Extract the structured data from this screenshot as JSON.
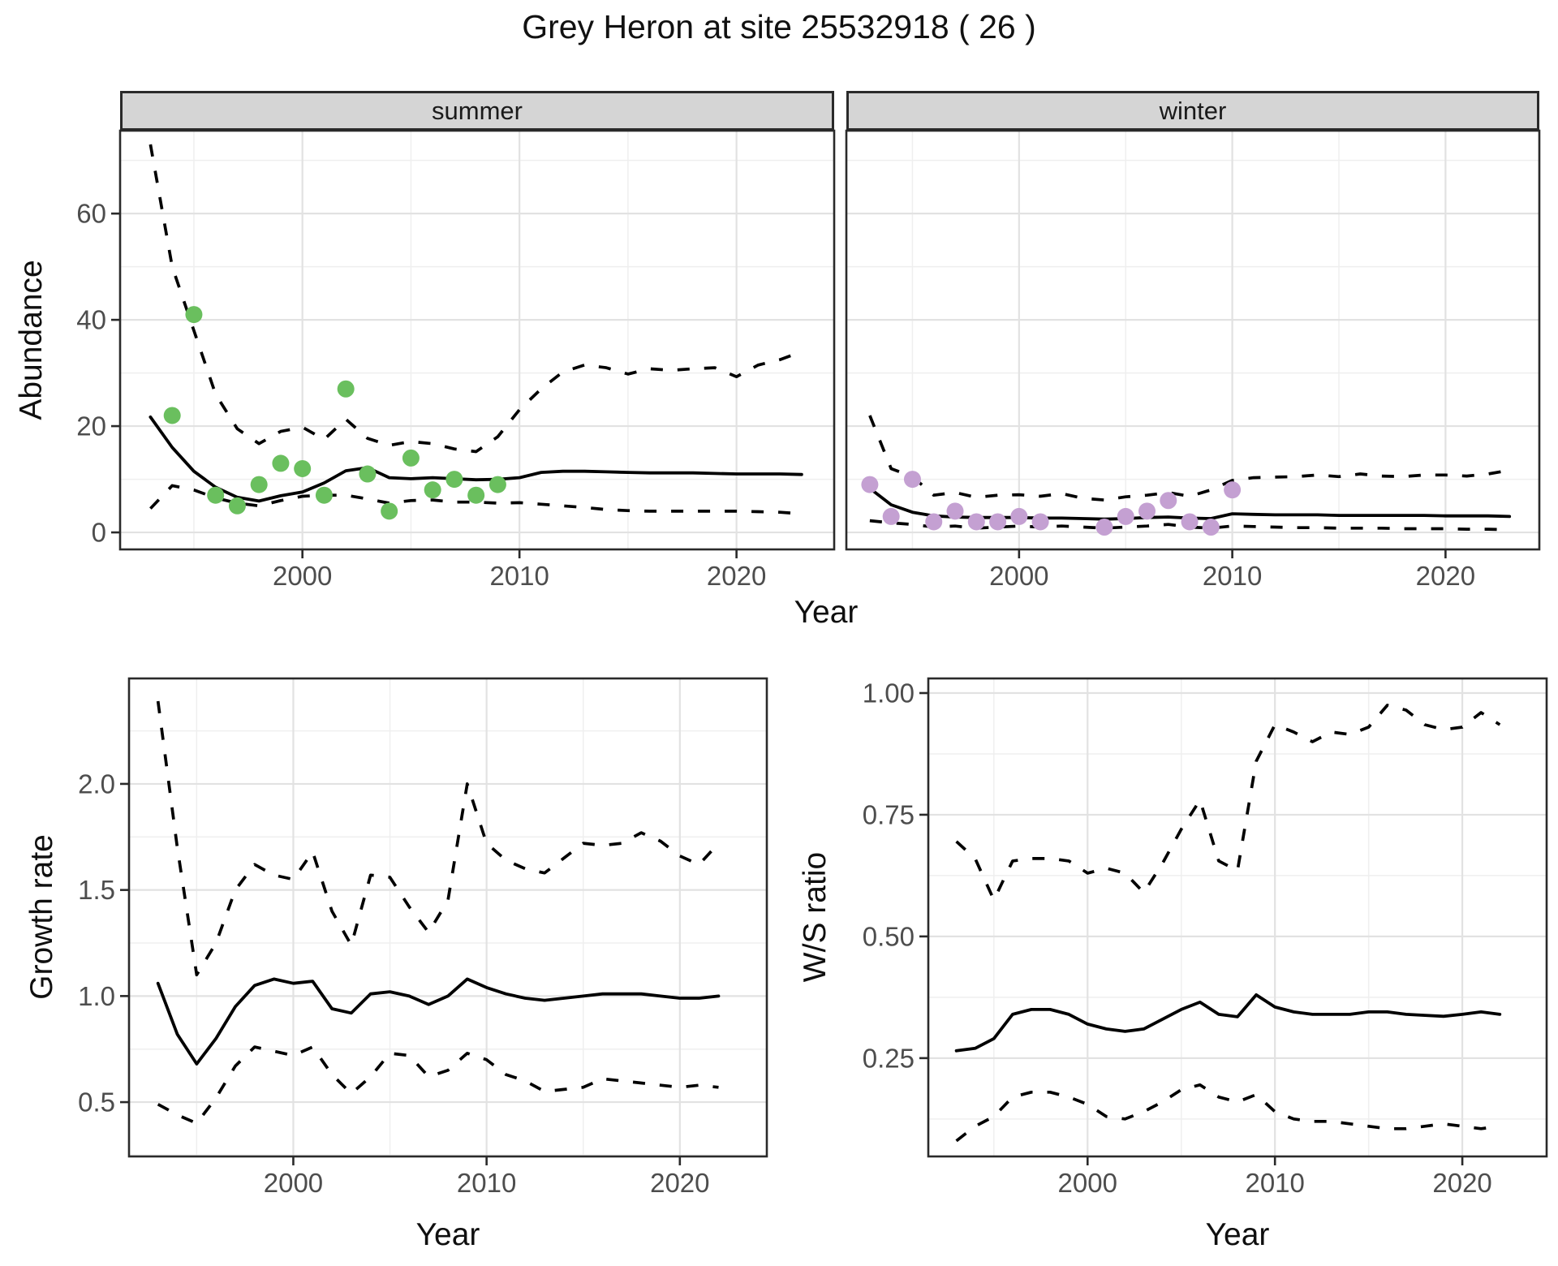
{
  "title": "Grey Heron at site 25532918 ( 26 )",
  "colors": {
    "summer_point": "#6ABF5E",
    "winter_point": "#C4A0D2",
    "fit_line": "#000000",
    "ci_line": "#000000",
    "grid_major": "#E2E2E2",
    "grid_minor": "#EFEFEF",
    "panel_border": "#2A2A2A",
    "strip_bg": "#D5D5D5",
    "tick_label": "#4D4D4D"
  },
  "chart_data": [
    {
      "type": "line",
      "id": "abundance",
      "ylabel": "Abundance",
      "xlabel": "Year",
      "ylim": [
        -3.2,
        75.6
      ],
      "yticks": [
        0,
        20,
        40,
        60
      ],
      "ytick_labels": [
        "0",
        "20",
        "40",
        "60"
      ],
      "yminor": [
        10,
        30,
        50,
        70
      ],
      "xticks": [
        2000,
        2010,
        2020
      ],
      "xtick_labels": [
        "2000",
        "2010",
        "2020"
      ],
      "xminor": [
        1995,
        2005,
        2015
      ],
      "years": [
        1993,
        1994,
        1995,
        1996,
        1997,
        1998,
        1999,
        2000,
        2001,
        2002,
        2003,
        2004,
        2005,
        2006,
        2007,
        2008,
        2009,
        2010,
        2011,
        2012,
        2013,
        2014,
        2015,
        2016,
        2017,
        2018,
        2019,
        2020,
        2021,
        2022,
        2023
      ],
      "facets": [
        {
          "label": "summer",
          "xlim": [
            1991.6,
            2024.5
          ],
          "fit": [
            21.7,
            16,
            11.5,
            8.5,
            6.6,
            5.9,
            6.9,
            7.6,
            9.3,
            11.6,
            12.2,
            10.3,
            10.1,
            10.3,
            10.1,
            9.9,
            10.0,
            10.3,
            11.3,
            11.5,
            11.5,
            11.4,
            11.3,
            11.2,
            11.2,
            11.2,
            11.1,
            11.0,
            11.0,
            11.0,
            10.9
          ],
          "upper": [
            73,
            50,
            38,
            26,
            19.5,
            16.7,
            19,
            19.8,
            17.5,
            21.3,
            17.7,
            16.4,
            17.1,
            16.7,
            15.7,
            15.2,
            18,
            23.1,
            27,
            30.2,
            31.5,
            31,
            29.8,
            30.8,
            30.5,
            30.8,
            31,
            29.3,
            31.5,
            32.5,
            34
          ],
          "lower": [
            4.5,
            8.8,
            8,
            6.5,
            5.5,
            5,
            6,
            6.8,
            7,
            7,
            6.3,
            5.5,
            6,
            6.1,
            5.7,
            5.7,
            5.5,
            5.6,
            5.3,
            5,
            4.7,
            4.3,
            4.1,
            4,
            4,
            4,
            4,
            4,
            3.9,
            3.8,
            3.5
          ],
          "points_x": [
            1994,
            1995,
            1996,
            1997,
            1998,
            1999,
            2000,
            2001,
            2002,
            2003,
            2004,
            2005,
            2006,
            2007,
            2008,
            2009
          ],
          "points_y": [
            22,
            41,
            7,
            5,
            9,
            13,
            12,
            7,
            27,
            11,
            4,
            14,
            8,
            10,
            7,
            9
          ]
        },
        {
          "label": "winter",
          "xlim": [
            1991.9,
            2024.4
          ],
          "fit": [
            8.3,
            5.2,
            3.8,
            3.1,
            2.9,
            2.8,
            2.8,
            2.8,
            2.7,
            2.7,
            2.6,
            2.5,
            2.6,
            2.8,
            2.9,
            2.7,
            2.6,
            3.5,
            3.4,
            3.3,
            3.3,
            3.3,
            3.2,
            3.2,
            3.2,
            3.2,
            3.2,
            3.1,
            3.1,
            3.1,
            3.0
          ],
          "upper": [
            22,
            12,
            10.5,
            7,
            7.5,
            6.6,
            7,
            7.1,
            6.8,
            7.3,
            6.4,
            6.1,
            6.7,
            7,
            7.5,
            6.8,
            8,
            9.8,
            10.3,
            10.4,
            10.5,
            10.8,
            10.5,
            11,
            10.6,
            10.5,
            10.8,
            10.8,
            10.6,
            11,
            11.7
          ],
          "lower": [
            2.2,
            1.8,
            1.5,
            1,
            1.2,
            0.8,
            1,
            1.2,
            1,
            1.2,
            1,
            0.8,
            1,
            1.2,
            1.5,
            1,
            0.8,
            1.2,
            1.1,
            1,
            0.9,
            0.9,
            0.8,
            0.8,
            0.8,
            0.7,
            0.7,
            0.7,
            0.6,
            0.6,
            0.5
          ],
          "points_x": [
            1993,
            1994,
            1995,
            1996,
            1997,
            1998,
            1999,
            2000,
            2001,
            2004,
            2005,
            2006,
            2007,
            2008,
            2009,
            2010
          ],
          "points_y": [
            9,
            3,
            10,
            2,
            4,
            2,
            2,
            3,
            2,
            1,
            3,
            4,
            6,
            2,
            1,
            8
          ]
        }
      ]
    },
    {
      "type": "line",
      "id": "growth_rate",
      "ylabel": "Growth rate",
      "xlabel": "Year",
      "xlim": [
        1991.5,
        2024.5
      ],
      "ylim": [
        0.244,
        2.497
      ],
      "yticks": [
        0.5,
        1.0,
        1.5,
        2.0
      ],
      "ytick_labels": [
        "0.5",
        "1.0",
        "1.5",
        "2.0"
      ],
      "yminor": [
        0.25,
        0.75,
        1.25,
        1.75,
        2.25
      ],
      "xticks": [
        2000,
        2010,
        2020
      ],
      "xtick_labels": [
        "2000",
        "2010",
        "2020"
      ],
      "xminor": [
        1995,
        2005,
        2015
      ],
      "years": [
        1993,
        1994,
        1995,
        1996,
        1997,
        1998,
        1999,
        2000,
        2001,
        2002,
        2003,
        2004,
        2005,
        2006,
        2007,
        2008,
        2009,
        2010,
        2011,
        2012,
        2013,
        2014,
        2015,
        2016,
        2017,
        2018,
        2019,
        2020,
        2021,
        2022
      ],
      "fit": [
        1.06,
        0.82,
        0.68,
        0.8,
        0.95,
        1.05,
        1.08,
        1.06,
        1.07,
        0.94,
        0.92,
        1.01,
        1.02,
        1.0,
        0.96,
        1.0,
        1.08,
        1.04,
        1.01,
        0.99,
        0.98,
        0.99,
        1.0,
        1.01,
        1.01,
        1.01,
        1.0,
        0.99,
        0.99,
        1.0
      ],
      "upper": [
        2.39,
        1.7,
        1.1,
        1.25,
        1.5,
        1.62,
        1.57,
        1.55,
        1.68,
        1.4,
        1.24,
        1.57,
        1.56,
        1.42,
        1.3,
        1.45,
        2.0,
        1.72,
        1.64,
        1.6,
        1.58,
        1.65,
        1.72,
        1.71,
        1.72,
        1.77,
        1.73,
        1.66,
        1.62,
        1.72
      ],
      "lower": [
        0.49,
        0.44,
        0.4,
        0.52,
        0.67,
        0.76,
        0.74,
        0.72,
        0.76,
        0.63,
        0.54,
        0.62,
        0.73,
        0.72,
        0.62,
        0.65,
        0.73,
        0.7,
        0.63,
        0.6,
        0.55,
        0.56,
        0.57,
        0.61,
        0.6,
        0.59,
        0.58,
        0.57,
        0.58,
        0.57
      ]
    },
    {
      "type": "line",
      "id": "ws_ratio",
      "ylabel": "W/S ratio",
      "xlabel": "Year",
      "xlim": [
        1991.5,
        2024.5
      ],
      "ylim": [
        0.048,
        1.03
      ],
      "yticks": [
        0.25,
        0.5,
        0.75,
        1.0
      ],
      "ytick_labels": [
        "0.25",
        "0.50",
        "0.75",
        "1.00"
      ],
      "yminor": [
        0.125,
        0.375,
        0.625,
        0.875
      ],
      "xticks": [
        2000,
        2010,
        2020
      ],
      "xtick_labels": [
        "2000",
        "2010",
        "2020"
      ],
      "xminor": [
        1995,
        2005,
        2015
      ],
      "years": [
        1993,
        1994,
        1995,
        1996,
        1997,
        1998,
        1999,
        2000,
        2001,
        2002,
        2003,
        2004,
        2005,
        2006,
        2007,
        2008,
        2009,
        2010,
        2011,
        2012,
        2013,
        2014,
        2015,
        2016,
        2017,
        2018,
        2019,
        2020,
        2021,
        2022
      ],
      "fit": [
        0.265,
        0.27,
        0.29,
        0.34,
        0.35,
        0.35,
        0.34,
        0.32,
        0.31,
        0.305,
        0.31,
        0.33,
        0.35,
        0.365,
        0.34,
        0.335,
        0.38,
        0.355,
        0.345,
        0.34,
        0.34,
        0.34,
        0.345,
        0.345,
        0.34,
        0.338,
        0.336,
        0.34,
        0.345,
        0.34
      ],
      "upper": [
        0.695,
        0.66,
        0.575,
        0.655,
        0.66,
        0.66,
        0.655,
        0.63,
        0.64,
        0.63,
        0.59,
        0.65,
        0.72,
        0.78,
        0.655,
        0.635,
        0.86,
        0.935,
        0.92,
        0.9,
        0.92,
        0.915,
        0.93,
        0.975,
        0.965,
        0.935,
        0.925,
        0.93,
        0.96,
        0.935
      ],
      "lower": [
        0.08,
        0.11,
        0.13,
        0.17,
        0.18,
        0.18,
        0.17,
        0.155,
        0.13,
        0.125,
        0.14,
        0.16,
        0.185,
        0.195,
        0.17,
        0.16,
        0.175,
        0.14,
        0.125,
        0.12,
        0.12,
        0.115,
        0.11,
        0.105,
        0.105,
        0.11,
        0.115,
        0.11,
        0.105,
        0.11
      ]
    }
  ]
}
